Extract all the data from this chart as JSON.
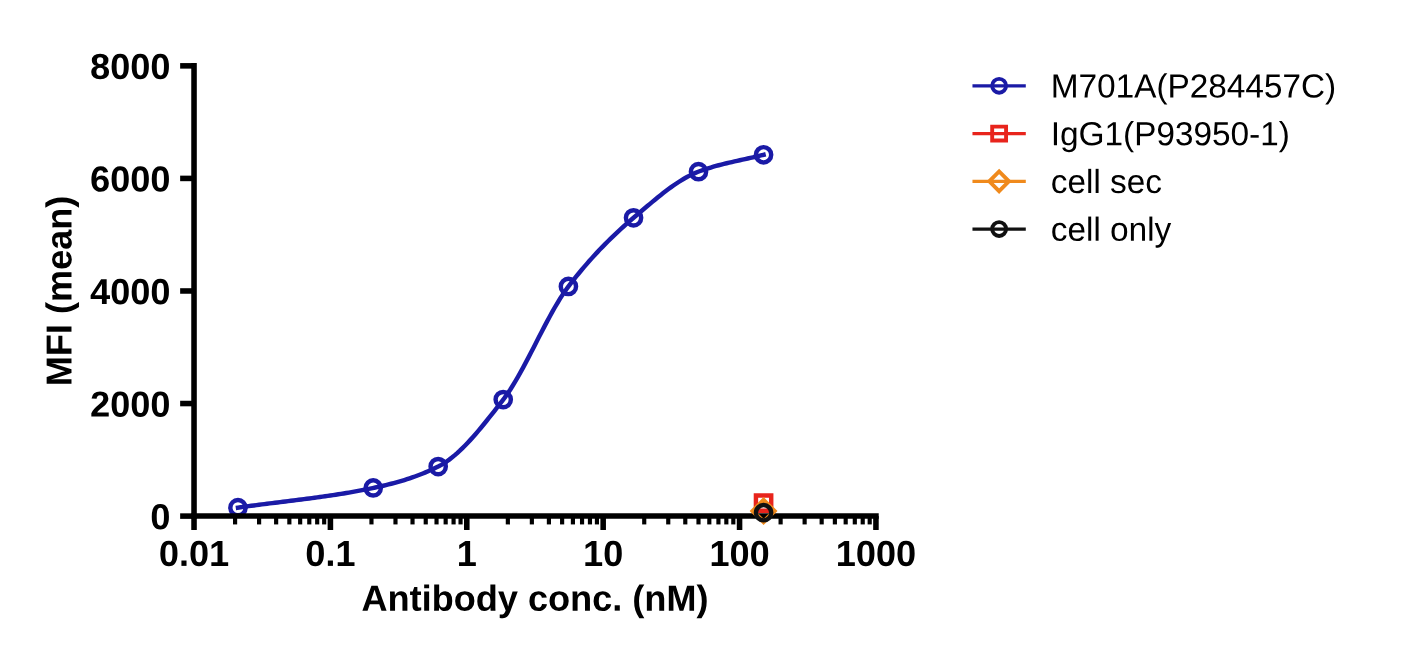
{
  "chart_data": {
    "type": "line",
    "xlabel": "Antibody conc. (nM)",
    "ylabel": "MFI (mean)",
    "log": "x",
    "xlim": [
      0.01,
      1000
    ],
    "xticks": [
      0.01,
      0.1,
      1,
      10,
      100,
      1000
    ],
    "ylim": [
      0,
      8000
    ],
    "yticks": [
      0,
      2000,
      4000,
      6000,
      8000
    ],
    "grid": false,
    "legend": "top right",
    "series": [
      {
        "name": "M701A(P284457C)",
        "color": "#1a1aa6",
        "marker": "circle",
        "x": [
          0.021,
          0.206,
          0.617,
          1.85,
          5.56,
          16.7,
          50,
          150
        ],
        "values": [
          150,
          500,
          880,
          2070,
          4080,
          5300,
          6120,
          6420
        ]
      },
      {
        "name": "IgG1(P93950-1)",
        "color": "#e8241c",
        "type": "scatter",
        "marker": "square",
        "x": [
          150
        ],
        "values": [
          230
        ]
      },
      {
        "name": "cell sec",
        "color": "#f08a1c",
        "type": "scatter",
        "marker": "diamond",
        "x": [
          150
        ],
        "values": [
          90
        ]
      },
      {
        "name": "cell only",
        "color": "#111111",
        "type": "scatter",
        "marker": "circle",
        "x": [
          150
        ],
        "values": [
          60
        ]
      }
    ]
  }
}
